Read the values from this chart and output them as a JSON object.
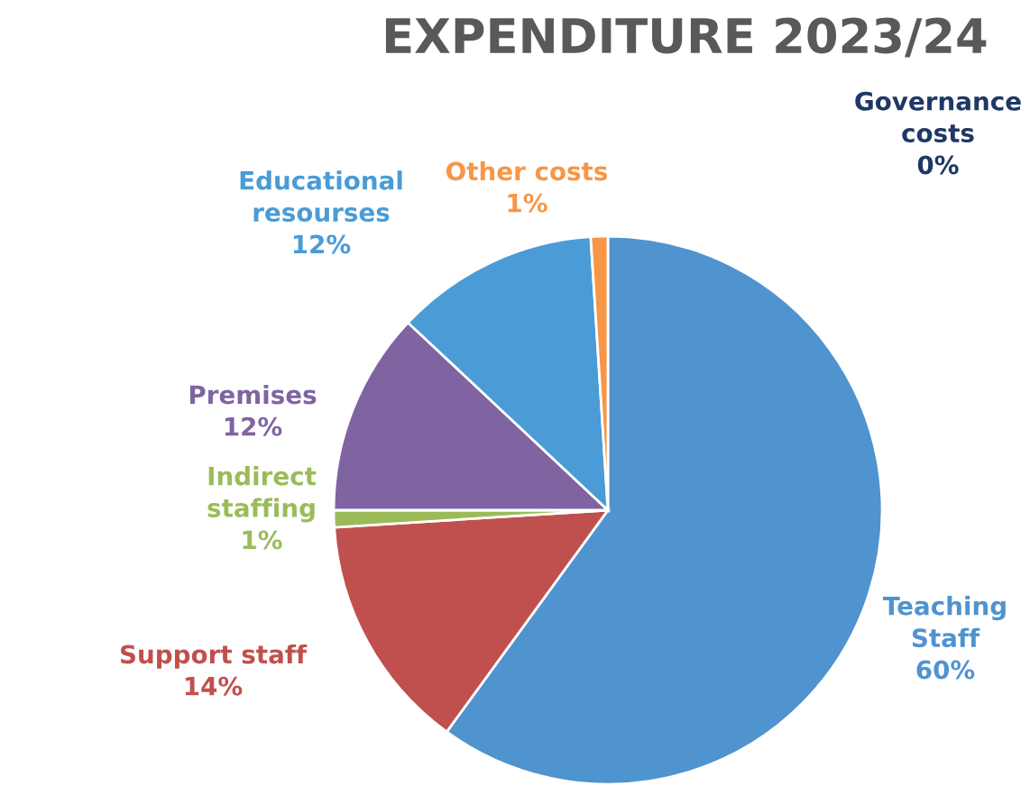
{
  "chart_data": {
    "type": "pie",
    "title": "EXPENDITURE 2023/24",
    "categories": [
      "Governance\ncosts",
      "Teaching\nStaff",
      "Support staff",
      "Indirect\nstaffing",
      "Premises",
      "Educational\nresourses",
      "Other costs"
    ],
    "values": [
      0,
      60,
      14,
      1,
      12,
      12,
      1
    ],
    "colors": [
      "#1f3864",
      "#4f93cf",
      "#c0504d",
      "#9bbb59",
      "#8064a2",
      "#4a9bd6",
      "#f79646"
    ],
    "value_labels": [
      "0%",
      "60%",
      "14%",
      "1%",
      "12%",
      "12%",
      "1%"
    ]
  }
}
